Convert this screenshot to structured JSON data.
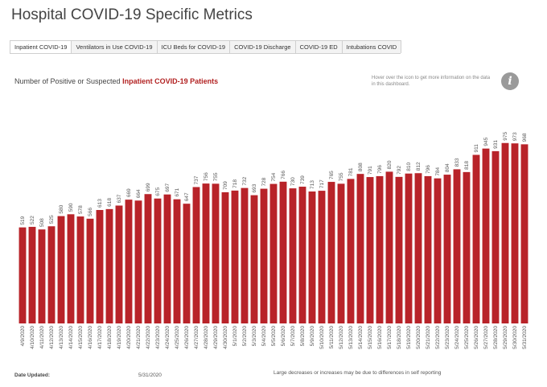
{
  "page": {
    "title": "Hospital COVID-19 Specific Metrics",
    "tabs": [
      "Inpatient COVID-19",
      "Ventilators in Use COVID-19",
      "ICU Beds for COVID-19",
      "COVID-19 Discharge",
      "COVID-19 ED",
      "Intubations COVID"
    ],
    "heading_prefix": "Number of Positive or Suspected ",
    "heading_highlight": "Inpatient COVID-19 Patients",
    "info_text": "Hover over the icon to get more information on the data in this dashboard.",
    "info_icon": "info-icon",
    "footer_label": "Date Updated:",
    "footer_date": "5/31/2020",
    "footer_note": "Large decreases or increases may be due to differences in self reporting"
  },
  "colors": {
    "bar": "#b82329",
    "highlight": "#b22222"
  },
  "chart_data": {
    "type": "bar",
    "categories": [
      "4/9/2020",
      "4/10/2020",
      "4/11/2020",
      "4/12/2020",
      "4/13/2020",
      "4/14/2020",
      "4/15/2020",
      "4/16/2020",
      "4/17/2020",
      "4/18/2020",
      "4/19/2020",
      "4/20/2020",
      "4/21/2020",
      "4/22/2020",
      "4/23/2020",
      "4/24/2020",
      "4/25/2020",
      "4/26/2020",
      "4/27/2020",
      "4/28/2020",
      "4/29/2020",
      "4/30/2020",
      "5/1/2020",
      "5/2/2020",
      "5/3/2020",
      "5/4/2020",
      "5/5/2020",
      "5/6/2020",
      "5/7/2020",
      "5/8/2020",
      "5/9/2020",
      "5/10/2020",
      "5/11/2020",
      "5/12/2020",
      "5/13/2020",
      "5/14/2020",
      "5/15/2020",
      "5/16/2020",
      "5/17/2020",
      "5/18/2020",
      "5/19/2020",
      "5/20/2020",
      "5/21/2020",
      "5/22/2020",
      "5/23/2020",
      "5/24/2020",
      "5/25/2020",
      "5/26/2020",
      "5/27/2020",
      "5/28/2020",
      "5/29/2020",
      "5/30/2020",
      "5/31/2020"
    ],
    "values": [
      519,
      522,
      508,
      525,
      580,
      590,
      578,
      566,
      613,
      618,
      637,
      669,
      664,
      699,
      675,
      697,
      671,
      647,
      737,
      756,
      755,
      709,
      718,
      732,
      693,
      728,
      754,
      766,
      730,
      739,
      713,
      717,
      765,
      755,
      781,
      808,
      791,
      796,
      820,
      792,
      810,
      812,
      796,
      784,
      804,
      833,
      818,
      911,
      945,
      931,
      975,
      973,
      968
    ],
    "ylim": [
      0,
      1000
    ],
    "grid": false
  }
}
